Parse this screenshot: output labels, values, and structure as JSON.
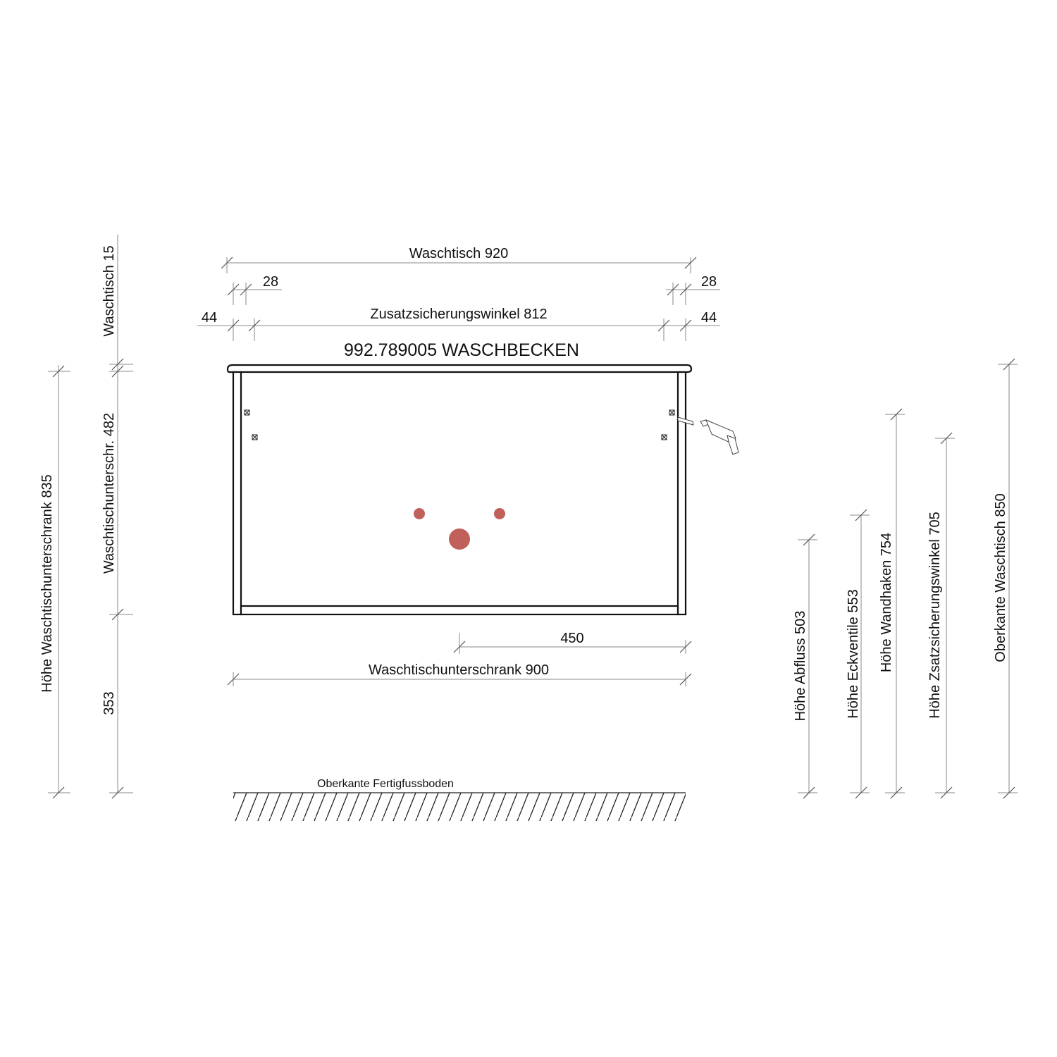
{
  "title": "992.789005 WASCHBECKEN",
  "colors": {
    "hole": "#c0605a",
    "line": "#111111",
    "dimension": "#8a8a8a"
  },
  "horizontal_dimensions": {
    "waschtisch": "Waschtisch 920",
    "offset_left_28": "28",
    "offset_right_28": "28",
    "offset_left_44": "44",
    "offset_right_44": "44",
    "zusatzsicherungswinkel": "Zusatzsicherungswinkel 812",
    "center_450": "450",
    "unterschrank": "Waschtischunterschrank 900"
  },
  "vertical_dimensions": {
    "hoehe_unterschrank": "Höhe Waschtischunterschrank 835",
    "waschtisch_15": "Waschtisch 15",
    "unterschrank_482": "Waschtischunterschr. 482",
    "floor_353": "353",
    "abfluss": "Höhe Abfluss 503",
    "eckventile": "Höhe Eckventile 553",
    "wandhaken": "Höhe Wandhaken 754",
    "zsatzsicherungswinkel": "Höhe Zsatzsicherungswinkel 705",
    "oberkante_waschtisch": "Oberkante Waschtisch 850"
  },
  "floor_label": "Oberkante Fertigfussboden",
  "icons": {
    "drill": "drill-icon",
    "screw": "screw-marker-icon"
  }
}
